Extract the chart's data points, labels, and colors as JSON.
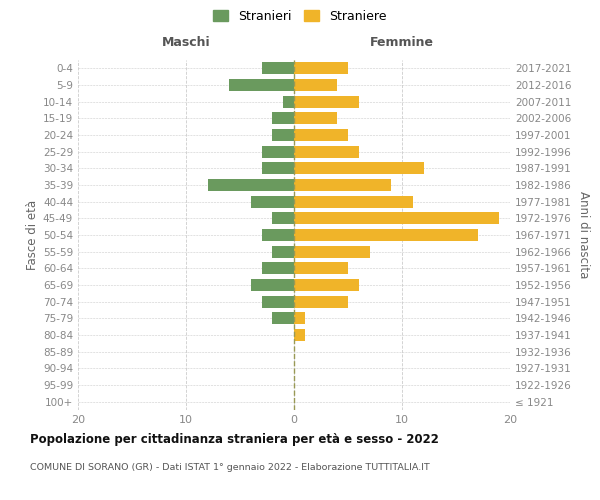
{
  "age_groups": [
    "100+",
    "95-99",
    "90-94",
    "85-89",
    "80-84",
    "75-79",
    "70-74",
    "65-69",
    "60-64",
    "55-59",
    "50-54",
    "45-49",
    "40-44",
    "35-39",
    "30-34",
    "25-29",
    "20-24",
    "15-19",
    "10-14",
    "5-9",
    "0-4"
  ],
  "birth_years": [
    "≤ 1921",
    "1922-1926",
    "1927-1931",
    "1932-1936",
    "1937-1941",
    "1942-1946",
    "1947-1951",
    "1952-1956",
    "1957-1961",
    "1962-1966",
    "1967-1971",
    "1972-1976",
    "1977-1981",
    "1982-1986",
    "1987-1991",
    "1992-1996",
    "1997-2001",
    "2002-2006",
    "2007-2011",
    "2012-2016",
    "2017-2021"
  ],
  "maschi": [
    0,
    0,
    0,
    0,
    0,
    2,
    3,
    4,
    3,
    2,
    3,
    2,
    4,
    8,
    3,
    3,
    2,
    2,
    1,
    6,
    3
  ],
  "femmine": [
    0,
    0,
    0,
    0,
    1,
    1,
    5,
    6,
    5,
    7,
    17,
    19,
    11,
    9,
    12,
    6,
    5,
    4,
    6,
    4,
    5
  ],
  "maschi_color": "#6a9a5e",
  "femmine_color": "#f0b429",
  "title": "Popolazione per cittadinanza straniera per età e sesso - 2022",
  "subtitle": "COMUNE DI SORANO (GR) - Dati ISTAT 1° gennaio 2022 - Elaborazione TUTTITALIA.IT",
  "legend_maschi": "Stranieri",
  "legend_femmine": "Straniere",
  "xlabel_left": "Maschi",
  "xlabel_right": "Femmine",
  "ylabel_left": "Fasce di età",
  "ylabel_right": "Anni di nascita",
  "xlim": 20,
  "background_color": "#ffffff",
  "grid_color": "#cccccc"
}
